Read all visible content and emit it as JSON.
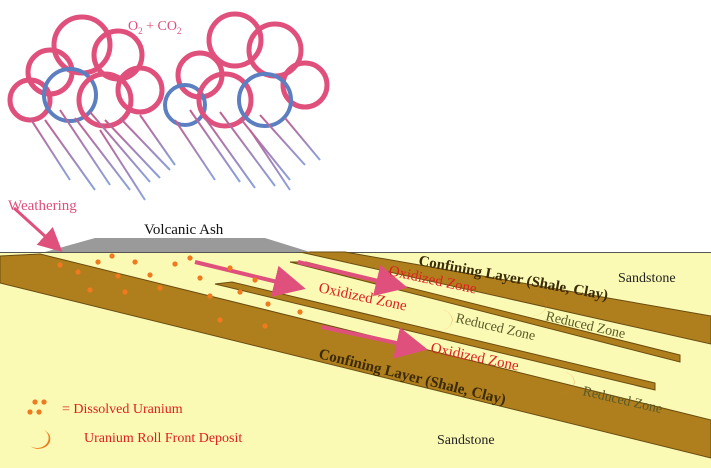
{
  "atmosphere": {
    "gases_label": "O",
    "gases_sub": "2",
    "gases_plus": " + CO",
    "gases_sub2": "2"
  },
  "weathering_label": "Weathering",
  "volcanic_ash_label": "Volcanic Ash",
  "sandstone_top_label": "Sandstone",
  "sandstone_bottom_label": "Sandstone",
  "confining_layer_upper_label": "Confining Layer (Shale, Clay)",
  "confining_layer_lower_label": "Confining Layer (Shale, Clay)",
  "oxidized_zone_labels": [
    "Oxidized Zone",
    "Oxidized Zone",
    "Oxidized Zone"
  ],
  "reduced_zone_labels": [
    "Reduced Zone",
    "Reduced Zone",
    "Reduced Zone"
  ],
  "legend": {
    "dissolved_uranium_label": "= Dissolved Uranium",
    "roll_front_label": "Uranium Roll Front Deposit"
  },
  "colors": {
    "sky": "#ffffff",
    "sandstone": "#fafab4",
    "shale": "#b07f1d",
    "ash": "#9a9a9a",
    "cloud_pink": "#e0507c",
    "cloud_blue": "#5b7fc0",
    "rain_blue": "#8aa2dc",
    "oxidized_text": "#e02020",
    "reduced_text": "#5a5a28",
    "uranium_orange": "#f07a1e",
    "arrow_pink": "#e0507c"
  }
}
